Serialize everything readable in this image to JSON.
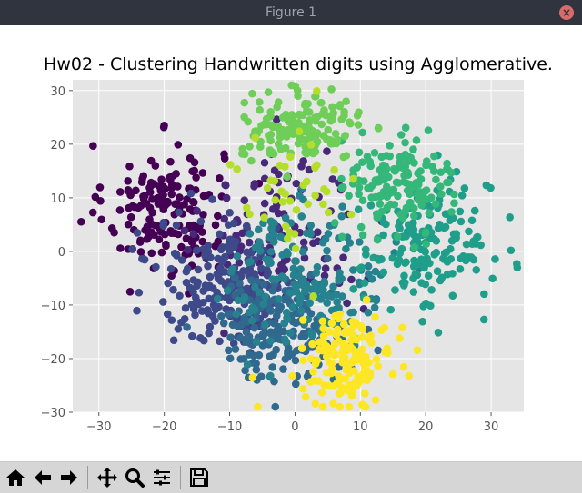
{
  "window": {
    "title": "Figure 1"
  },
  "toolbar": {
    "icons": [
      "home-icon",
      "back-arrow-icon",
      "forward-arrow-icon",
      "pan-icon",
      "zoom-icon",
      "configure-subplots-icon",
      "save-icon"
    ]
  },
  "chart_data": {
    "type": "scatter",
    "title": "Hw02 - Clustering Handwritten digits using Agglomerative.",
    "xlabel": "",
    "ylabel": "",
    "xlim": [
      -34,
      35
    ],
    "ylim": [
      -30,
      32
    ],
    "xticks": [
      -30,
      -20,
      -10,
      0,
      10,
      20,
      30
    ],
    "yticks": [
      -30,
      -20,
      -10,
      0,
      10,
      20,
      30
    ],
    "xtick_labels": [
      "−30",
      "−20",
      "−10",
      "0",
      "10",
      "20",
      "30"
    ],
    "ytick_labels": [
      "−30",
      "−20",
      "−10",
      "0",
      "10",
      "20",
      "30"
    ],
    "grid": true,
    "background": "#e5e5e5",
    "clusters": [
      {
        "color": "#440154",
        "center": [
          -20,
          8
        ],
        "spread": [
          4.5,
          6
        ],
        "count": 170
      },
      {
        "color": "#482878",
        "center": [
          -2,
          3
        ],
        "spread": [
          6,
          8
        ],
        "count": 120
      },
      {
        "color": "#3e4989",
        "center": [
          -10,
          -6
        ],
        "spread": [
          5.5,
          6
        ],
        "count": 210
      },
      {
        "color": "#31688e",
        "center": [
          -2,
          -14
        ],
        "spread": [
          5,
          5
        ],
        "count": 190
      },
      {
        "color": "#26828e",
        "center": [
          2,
          -5
        ],
        "spread": [
          6,
          6.5
        ],
        "count": 170
      },
      {
        "color": "#1f9e89",
        "center": [
          20,
          1
        ],
        "spread": [
          5,
          6
        ],
        "count": 180
      },
      {
        "color": "#35b779",
        "center": [
          16,
          13
        ],
        "spread": [
          4,
          4.5
        ],
        "count": 150
      },
      {
        "color": "#6ece58",
        "center": [
          1,
          23
        ],
        "spread": [
          4.5,
          3
        ],
        "count": 160
      },
      {
        "color": "#b5de2b",
        "center": [
          0,
          10
        ],
        "spread": [
          5,
          6
        ],
        "count": 40
      },
      {
        "color": "#fde725",
        "center": [
          8,
          -20
        ],
        "spread": [
          3.5,
          4
        ],
        "count": 150
      }
    ]
  }
}
